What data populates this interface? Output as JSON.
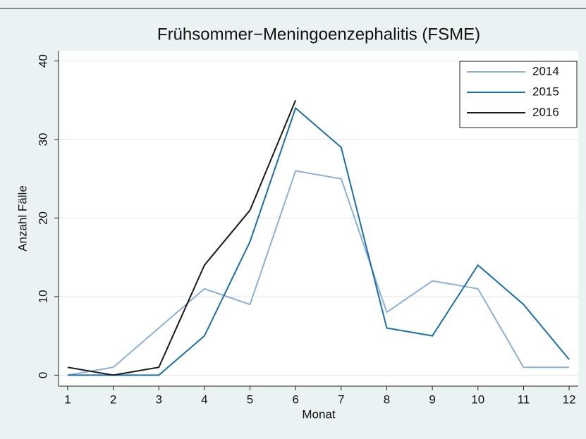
{
  "chart_data": {
    "type": "line",
    "title": "Frühsommer−Meningoenzephalitis (FSME)",
    "x_label": "Monat",
    "y_label": "Anzahl Fälle",
    "x": [
      1,
      2,
      3,
      4,
      5,
      6,
      7,
      8,
      9,
      10,
      11,
      12
    ],
    "series": [
      {
        "name": "2014",
        "color": "#8eb0d6",
        "values": [
          0,
          1,
          6,
          11,
          9,
          26,
          25,
          8,
          12,
          11,
          1,
          1
        ]
      },
      {
        "name": "2015",
        "color": "#1a6fa6",
        "values": [
          0,
          0,
          0,
          5,
          17,
          34,
          29,
          6,
          5,
          14,
          9,
          2
        ]
      },
      {
        "name": "2016",
        "color": "#1a1a1a",
        "values": [
          1,
          0,
          1,
          14,
          21,
          35,
          null,
          null,
          null,
          null,
          null,
          null
        ]
      }
    ],
    "xlim": [
      0.8,
      12.2
    ],
    "xticks": [
      1,
      2,
      3,
      4,
      5,
      6,
      7,
      8,
      9,
      10,
      11,
      12
    ],
    "ylim": [
      -1.4,
      41.3
    ],
    "yticks": [
      0,
      10,
      20,
      30,
      40
    ],
    "grid": true,
    "legend": "top-right"
  }
}
